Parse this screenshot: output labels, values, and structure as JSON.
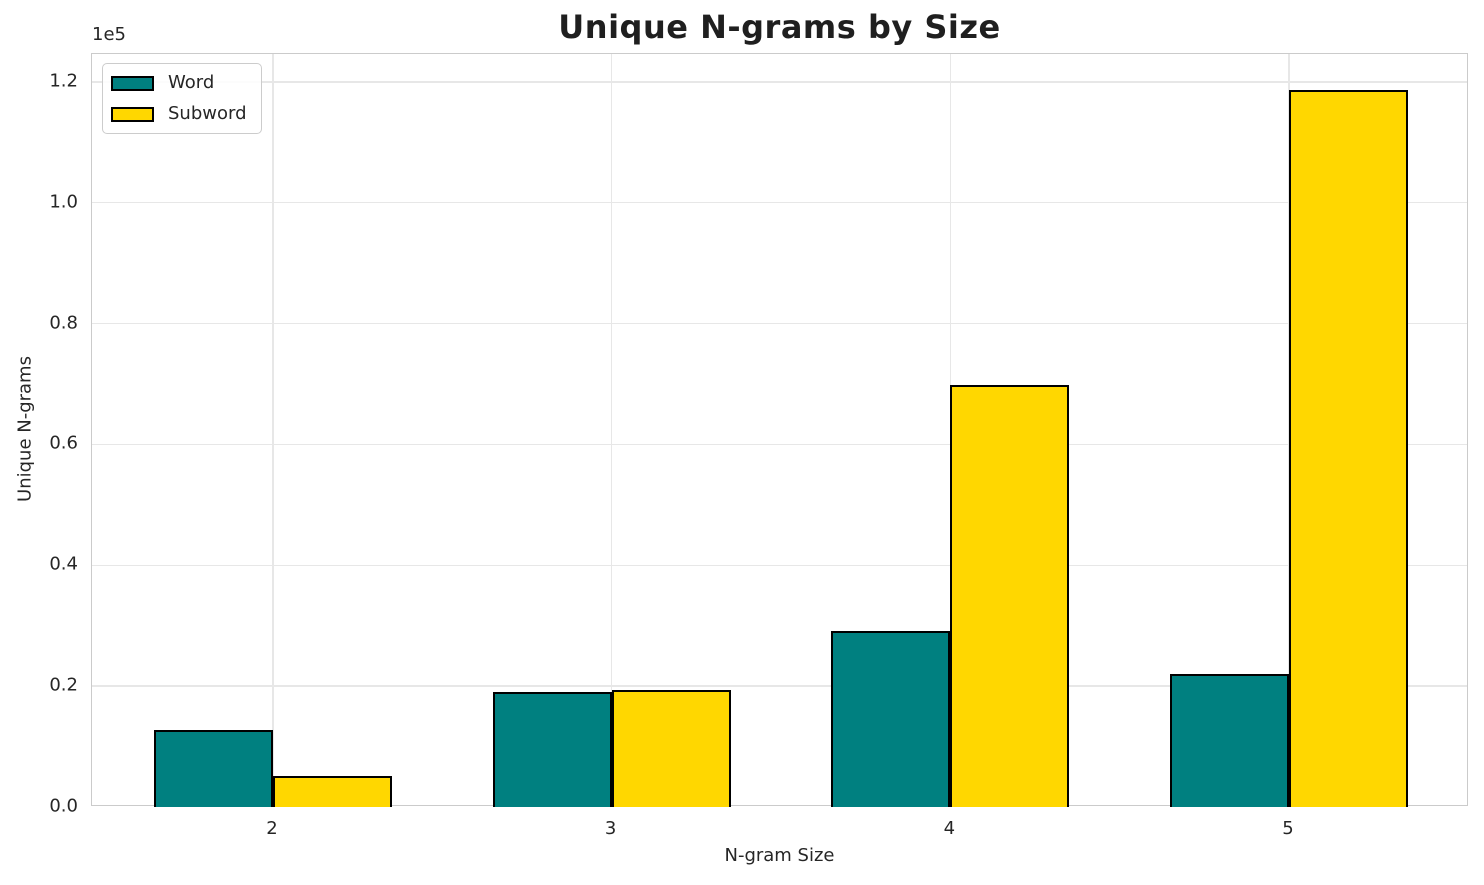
{
  "chart_data": {
    "type": "bar",
    "title": "Unique N-grams by Size",
    "xlabel": "N-gram Size",
    "ylabel": "Unique N-grams",
    "y_offset_text": "1e5",
    "categories": [
      "2",
      "3",
      "4",
      "5"
    ],
    "series": [
      {
        "name": "Word",
        "color": "#008080",
        "values": [
          12800,
          19100,
          29100,
          22000
        ]
      },
      {
        "name": "Subword",
        "color": "#FFD700",
        "values": [
          5200,
          19300,
          69800,
          118700
        ]
      }
    ],
    "bar_edge_color": "#000000",
    "ylim": [
      0,
      124600
    ],
    "yticks": [
      {
        "value": 0,
        "label": "0.0"
      },
      {
        "value": 20000,
        "label": "0.2"
      },
      {
        "value": 40000,
        "label": "0.4"
      },
      {
        "value": 60000,
        "label": "0.6"
      },
      {
        "value": 80000,
        "label": "0.8"
      },
      {
        "value": 100000,
        "label": "1.0"
      },
      {
        "value": 120000,
        "label": "1.2"
      }
    ],
    "grid": true,
    "legend_position": "upper-left"
  }
}
